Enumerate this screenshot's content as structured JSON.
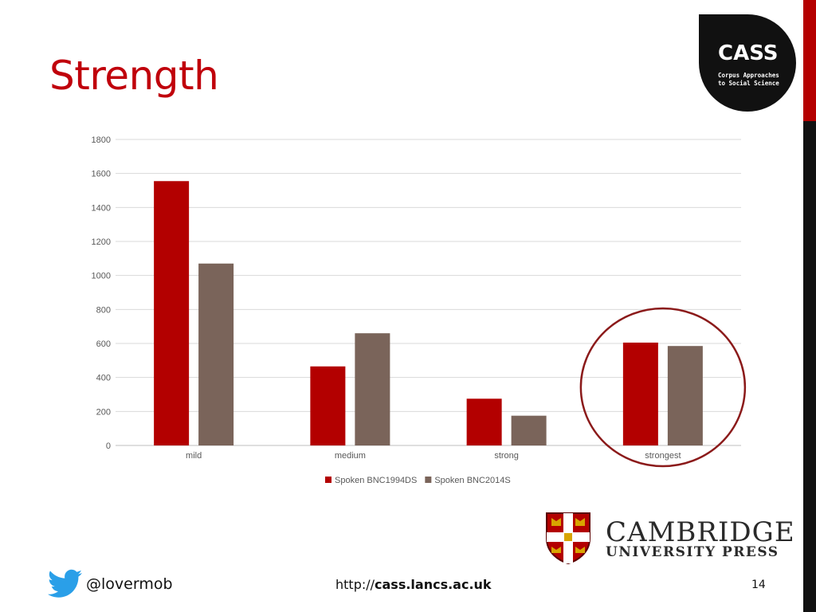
{
  "slide": {
    "title": "Strength",
    "page_number": "14",
    "twitter_handle": "@lovermob",
    "url_prefix": "http://",
    "url_domain": "cass.lancs.ac.uk"
  },
  "cass_logo": {
    "name": "CASS",
    "subtitle_line1": "Corpus Approaches",
    "subtitle_line2": "to Social Science"
  },
  "publisher_logo": {
    "line1": "CAMBRIDGE",
    "line2": "UNIVERSITY PRESS"
  },
  "colors": {
    "title": "#c0000b",
    "series1": "#b30000",
    "series2": "#7a645a",
    "highlight_circle": "#8b1a1a"
  },
  "chart_data": {
    "type": "bar",
    "categories": [
      "mild",
      "medium",
      "strong",
      "strongest"
    ],
    "series": [
      {
        "name": "Spoken BNC1994DS",
        "values": [
          1555,
          465,
          275,
          605
        ],
        "color": "#b30000"
      },
      {
        "name": "Spoken BNC2014S",
        "values": [
          1070,
          660,
          175,
          585
        ],
        "color": "#7a645a"
      }
    ],
    "ylim": [
      0,
      1800
    ],
    "yticks": [
      0,
      200,
      400,
      600,
      800,
      1000,
      1200,
      1400,
      1600,
      1800
    ],
    "grid": true,
    "legend_position": "bottom",
    "highlighted_category": "strongest"
  }
}
